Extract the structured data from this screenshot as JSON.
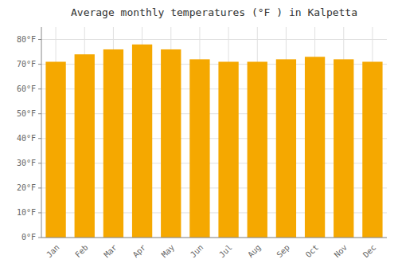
{
  "chart_data": {
    "type": "bar",
    "title": "Average monthly temperatures (°F ) in Kalpetta",
    "categories": [
      "Jan",
      "Feb",
      "Mar",
      "Apr",
      "May",
      "Jun",
      "Jul",
      "Aug",
      "Sep",
      "Oct",
      "Nov",
      "Dec"
    ],
    "values": [
      71,
      74,
      76,
      78,
      76,
      72,
      71,
      71,
      72,
      73,
      72,
      71
    ],
    "color": "#F5A800",
    "ylim": [
      0,
      85
    ],
    "yticks": [
      {
        "value": 0,
        "label": "0°F"
      },
      {
        "value": 10,
        "label": "10°F"
      },
      {
        "value": 20,
        "label": "20°F"
      },
      {
        "value": 30,
        "label": "30°F"
      },
      {
        "value": 40,
        "label": "40°F"
      },
      {
        "value": 50,
        "label": "50°F"
      },
      {
        "value": 60,
        "label": "60°F"
      },
      {
        "value": 70,
        "label": "70°F"
      },
      {
        "value": 80,
        "label": "80°F"
      }
    ],
    "grid": true
  }
}
